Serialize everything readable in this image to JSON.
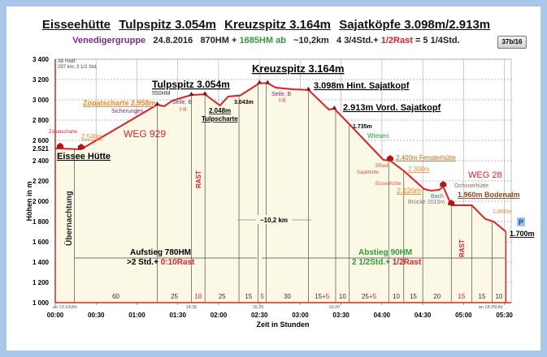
{
  "header": {
    "title_parts": [
      "Eisseehütte",
      "Tulpspitz 3.054m",
      "Kreuzspitz 3.164m",
      "Sajatköpfe 3.098m/2.913m"
    ],
    "group": "Venedigergruppe",
    "date": "24.8.2016",
    "hm_up": "870HM +",
    "hm_down": "1685HM ab",
    "distance": "~10,2km",
    "time": "4 3/4Std.+",
    "rest": "1/2Rast",
    "total": "= 5 1/4Std.",
    "badge": "37b/16"
  },
  "chart_data": {
    "type": "area",
    "title": "Eisseehütte Tulpspitz 3.054m Kreuzspitz 3.164m Sajatköpfe 3.098m/2.913m",
    "xlabel": "Zeit in Stunden",
    "ylabel": "Höhen in m",
    "xlim_minutes": [
      0,
      335
    ],
    "ylim": [
      1000,
      3400
    ],
    "yticks": [
      1000,
      1200,
      1400,
      1600,
      1800,
      2000,
      2200,
      2400,
      2600,
      2800,
      3000,
      3200,
      3400
    ],
    "ytick_labels": [
      "1 000",
      "1 200",
      "1 400",
      "1 600",
      "1 800",
      "2 000",
      "2 200",
      "2 400",
      "2 600",
      "2 800",
      "3 000",
      "3 200",
      "3 400"
    ],
    "start_label": "2.521",
    "xticks_minutes": [
      0,
      30,
      60,
      90,
      120,
      150,
      180,
      210,
      240,
      270,
      300,
      330
    ],
    "xtick_labels": [
      "00:00",
      "00:30",
      "01:00",
      "01:30",
      "02:00",
      "02:30",
      "03:00",
      "03:30",
      "04:00",
      "04:30",
      "05:00",
      "05:30"
    ],
    "clock_labels": [
      {
        "min": 0,
        "text": "ab 13:10Uhr"
      },
      {
        "min": 100,
        "text": "14:35"
      },
      {
        "min": 149,
        "text": "15:25"
      },
      {
        "min": 205,
        "text": "16:20"
      },
      {
        "min": 320,
        "text": "an 18:25Uhr"
      }
    ],
    "profile": [
      [
        0,
        2521
      ],
      [
        19,
        2512
      ],
      [
        75,
        2952
      ],
      [
        80,
        2936
      ],
      [
        86,
        2992
      ],
      [
        100,
        3048
      ],
      [
        110,
        3054
      ],
      [
        121,
        2944
      ],
      [
        127,
        3032
      ],
      [
        136,
        3043
      ],
      [
        150,
        3164
      ],
      [
        156,
        3164
      ],
      [
        162,
        3120
      ],
      [
        174,
        3104
      ],
      [
        186,
        3098
      ],
      [
        201,
        2904
      ],
      [
        205,
        2913
      ],
      [
        216,
        2760
      ],
      [
        241,
        2408
      ],
      [
        246,
        2400
      ],
      [
        256,
        2300
      ],
      [
        271,
        2120
      ],
      [
        276,
        2104
      ],
      [
        282,
        2112
      ],
      [
        285,
        2144
      ],
      [
        291,
        1960
      ],
      [
        306,
        1960
      ],
      [
        316,
        1824
      ],
      [
        322,
        1800
      ],
      [
        331,
        1700
      ]
    ],
    "segment_boundaries": [
      14,
      75,
      100,
      110,
      135,
      149,
      155,
      186,
      206,
      216,
      245,
      256,
      270,
      291,
      306,
      321,
      331
    ],
    "segments": [
      {
        "walk": "60",
        "rest": ""
      },
      {
        "walk": "25",
        "rest": ""
      },
      {
        "walk": "",
        "rest": "10"
      },
      {
        "walk": "25",
        "rest": ""
      },
      {
        "walk": "15",
        "rest": ""
      },
      {
        "walk": "",
        "rest": "5"
      },
      {
        "walk": "30",
        "rest": ""
      },
      {
        "walk": "15",
        "rest": "+5"
      },
      {
        "walk": "10",
        "rest": ""
      },
      {
        "walk": "25",
        "rest": "+5"
      },
      {
        "walk": "10",
        "rest": ""
      },
      {
        "walk": "15",
        "rest": ""
      },
      {
        "walk": "20",
        "rest": ""
      },
      {
        "walk": "",
        "rest": "15"
      },
      {
        "walk": "15",
        "rest": ""
      },
      {
        "walk": "10",
        "rest": ""
      }
    ],
    "annotations": {
      "abhaid1": "Ab Haid:",
      "abhaid2": "297 km; 3 1/2 Std.",
      "eissee": "Eissee Hütte",
      "zopat_small": "Zopatscharte",
      "m2540": "2.540m",
      "zopat2958": "Zopatscharte 2.958m",
      "sicherungen": "Sicherungen",
      "weg929": "WEG 929",
      "tulpspitz": "Tulpspitz 3.054m",
      "hm550": "550HM",
      "seile1": "Seile, B",
      "grade1": "I-II",
      "m2048": "2.048m",
      "tulpscharte": "Tulpscharte",
      "m3043": "3.043m",
      "kreuzspitz": "Kreuzspitz 3.164m",
      "seile2": "Seile, B",
      "grade2": "I-II",
      "hint": "3.098m Hint. Sajatkopf",
      "vord": "2.913m Vord. Sajatkopf",
      "m1735": "1.735m",
      "wiesen": "Wiesen",
      "fenster": "2.400m Fensterhütte",
      "rast5": "5Rast",
      "sajathuette": "Sajathütte",
      "m2300": "2.300m",
      "weg28": "WEG 28",
      "eisseehuette": "Eisseehütte",
      "m2120": "2.120m",
      "ochsner": "Ochsnerhütte",
      "bodenalm": "1.960m Bodenalm",
      "bach": "Bach",
      "bruecke": "Brücke 2015m",
      "m1800": "1.800m",
      "m1700": "1.700m",
      "parking": "P",
      "rast_a": "RAST",
      "rast_b": "RAST",
      "uebernachtung": "Übernachtung",
      "km": "~10,2 km",
      "aufstieg": "Aufstieg 780HM",
      "auf_time": ">2 Std.+",
      "auf_rest": "0:10Rast",
      "abstieg": "Abstieg 90HM",
      "ab_time": "2 1/2Std.+",
      "ab_rest": "1/2Rast"
    },
    "colors": {
      "line": "#d8232a",
      "fill": "#fbf9e6",
      "axis": "#c0302a",
      "orange": "#e8892a",
      "purple": "#7b2a8c",
      "green": "#2f9a37",
      "red": "#e0202a"
    }
  }
}
